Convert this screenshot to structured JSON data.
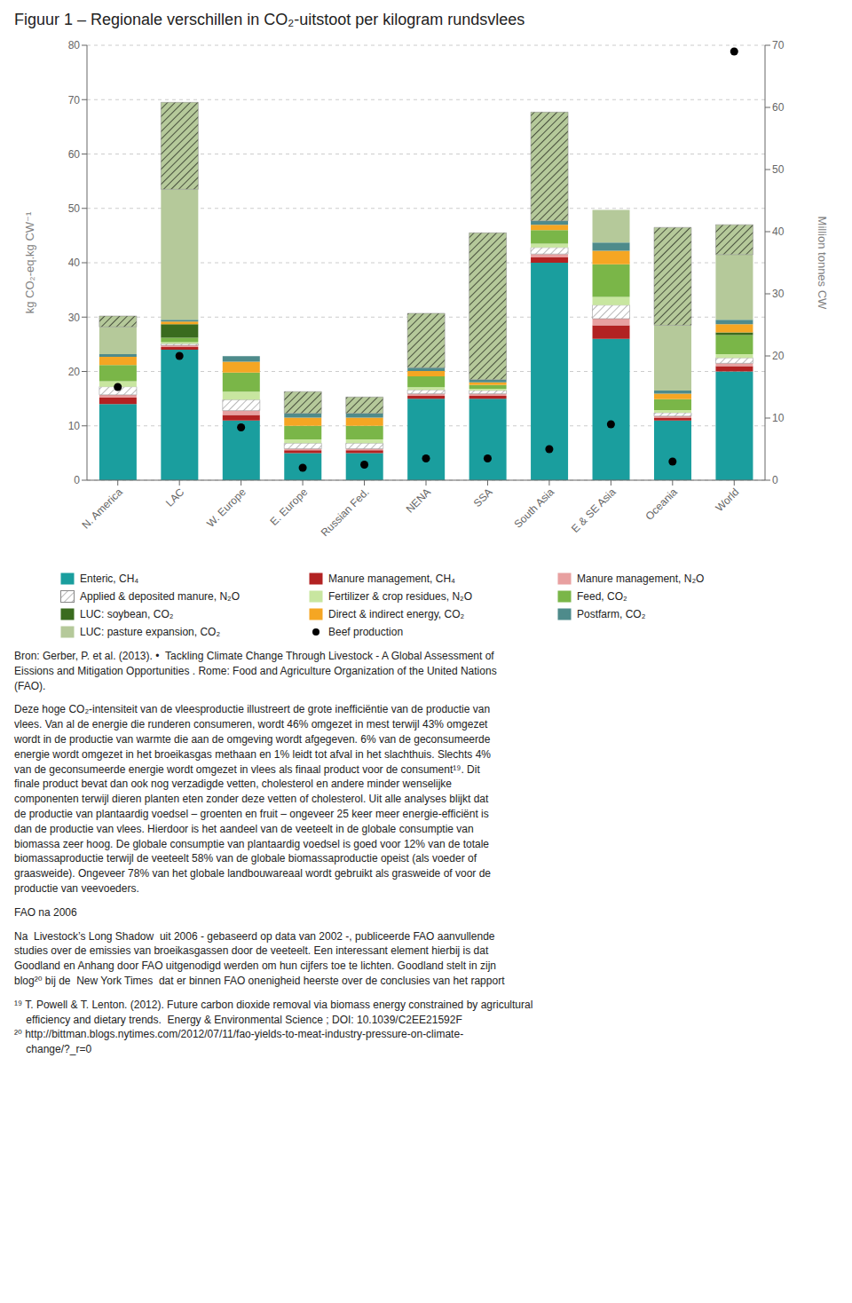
{
  "chart_data": {
    "type": "bar",
    "stacked": true,
    "title": "Figuur 1 – Regionale verschillen in CO₂-uitstoot per kilogram rundsvlees",
    "categories": [
      "N. America",
      "LAC",
      "W. Europe",
      "E. Europe",
      "Russian Fed.",
      "NENA",
      "SSA",
      "South Asia",
      "E & SE Asia",
      "Oceania",
      "World"
    ],
    "ylabel": "kg CO₂-eq.kg CW⁻¹",
    "y2label": "Million tonnes CW",
    "ylim": [
      0,
      80
    ],
    "yticks": [
      0,
      10,
      20,
      30,
      40,
      50,
      60,
      70,
      80
    ],
    "y2lim": [
      0,
      70
    ],
    "y2ticks": [
      0,
      10,
      20,
      30,
      40,
      50,
      60,
      70
    ],
    "grid": true,
    "legend": "bottom",
    "series": [
      {
        "name": "Enteric, CH₄",
        "color": "#1a9e9e",
        "values": [
          14.0,
          24.0,
          11.0,
          5.0,
          5.0,
          15.0,
          15.0,
          40.0,
          26.0,
          11.0,
          20.0
        ]
      },
      {
        "name": "Manure management, CH₄",
        "color": "#b22222",
        "values": [
          1.2,
          0.5,
          1.0,
          0.5,
          0.5,
          0.5,
          0.5,
          1.0,
          2.5,
          0.5,
          1.0
        ]
      },
      {
        "name": "Manure management, N₂O",
        "color": "#e8a0a0",
        "values": [
          0.5,
          0.3,
          0.8,
          0.3,
          0.3,
          0.4,
          0.4,
          0.6,
          1.2,
          0.3,
          0.5
        ]
      },
      {
        "name": "Applied & deposited manure, N₂O",
        "color": "#ffffff",
        "values": [
          1.5,
          0.3,
          2.0,
          1.0,
          1.0,
          0.7,
          0.6,
          1.2,
          2.5,
          0.6,
          1.0
        ]
      },
      {
        "name": "Fertilizer & crop residues, N₂O",
        "color": "#c8e6a0",
        "values": [
          1.0,
          0.3,
          1.5,
          0.7,
          0.7,
          0.5,
          0.3,
          0.7,
          1.5,
          0.5,
          0.7
        ]
      },
      {
        "name": "Feed, CO₂",
        "color": "#7ab648",
        "values": [
          3.0,
          0.8,
          3.5,
          2.5,
          2.5,
          2.0,
          0.7,
          2.5,
          6.0,
          2.0,
          3.5
        ]
      },
      {
        "name": "LUC: soybean, CO₂",
        "color": "#3a6b1e",
        "values": [
          0.0,
          2.5,
          0.0,
          0.0,
          0.0,
          0.0,
          0.0,
          0.0,
          0.0,
          0.0,
          0.5
        ]
      },
      {
        "name": "Direct & indirect energy, CO₂",
        "color": "#f5a623",
        "values": [
          1.5,
          0.5,
          2.0,
          1.5,
          1.5,
          1.0,
          0.5,
          1.0,
          2.5,
          1.0,
          1.5
        ]
      },
      {
        "name": "Postfarm, CO₂",
        "color": "#4e8b8b",
        "values": [
          0.5,
          0.3,
          1.0,
          0.8,
          0.8,
          0.6,
          0.5,
          0.7,
          1.5,
          0.6,
          0.8
        ]
      },
      {
        "name": "LUC: pasture expansion, CO₂",
        "color": "#b5c99a",
        "values": [
          5.0,
          24.0,
          0.0,
          0.0,
          0.0,
          0.0,
          0.0,
          0.0,
          6.0,
          12.0,
          12.0
        ]
      },
      {
        "color": "#b5c99a",
        "values": [
          2.0,
          16.0,
          0.0,
          4.0,
          3.0,
          10.0,
          27.0,
          20.0,
          0.0,
          18.0,
          5.5
        ]
      },
      {
        "name": "Beef production",
        "type": "scatter",
        "axis": "y2",
        "color": "#000000",
        "values": [
          15.0,
          20.0,
          8.5,
          2.0,
          2.5,
          3.5,
          3.5,
          5.0,
          9.0,
          3.0,
          69.0
        ]
      }
    ],
    "annotations": [
      "Bron: Gerber, P. et al. (2013). •  Tackling Climate Change Through Livestock - A Global Assessment of\nEissions and Mitigation Opportunities . Rome: Food and Agriculture Organization of the United Nations\n(FAO).",
      "Deze hoge CO₂-intensiteit van de vleesproductie illustreert de grote inefficiëntie van de productie van\nvlees. Van al de energie die runderen consumeren, wordt 46% omgezet in mest terwijl 43% omgezet\nwordt in de productie van warmte die aan de omgeving wordt afgegeven. 6% van de geconsumeerde\nenergie wordt omgezet in het broeikasgas methaan en 1% leidt tot afval in het slachthuis. Slechts 4%\nvan de geconsumeerde energie wordt omgezet in vlees als finaal product voor de consument¹⁹. Dit\nfinale product bevat dan ook nog verzadigde vetten, cholesterol en andere minder wenselijke\ncomponenten terwijl dieren planten eten zonder deze vetten of cholesterol. Uit alle analyses blijkt dat\nde productie van plantaardig voedsel – groenten en fruit – ongeveer 25 keer meer energie-efficiënt is\ndan de productie van vlees. Hierdoor is het aandeel van de veeteelt in de globale consumptie van\nbiomassa zeer hoog. De globale consumptie van plantaardig voedsel is goed voor 12% van de totale\nbiomassaproductie terwijl de veeteelt 58% van de globale biomassaproductie opeist (als voeder of\ngraasweide). Ongeveer 78% van het globale landbouwareaal wordt gebruikt als grasweide of voor de\nproductie van veevoeders.",
      "FAO na 2006",
      "Na  Livestock’s Long Shadow  uit 2006 - gebaseerd op data van 2002 -, publiceerde FAO aanvullende\nstudies over de emissies van broeikasgassen door de veeteelt. Een interessant element hierbij is dat\nGoodland en Anhang door FAO uitgenodigd werden om hun cijfers toe te lichten. Goodland stelt in zijn\nblog²⁰ bij de  New York Times  dat er binnen FAO onenigheid heerste over de conclusies van het rapport",
      "¹⁹ T. Powell & T. Lenton. (2012). Future carbon dioxide removal via biomass energy constrained by agricultural\n    efficiency and dietary trends.  Energy & Environmental Science ; DOI: 10.1039/C2EE21592F\n²⁰ http://bittman.blogs.nytimes.com/2012/07/11/fao-yields-to-meat-industry-pressure-on-climate-\n    change/?_r=0"
    ]
  }
}
